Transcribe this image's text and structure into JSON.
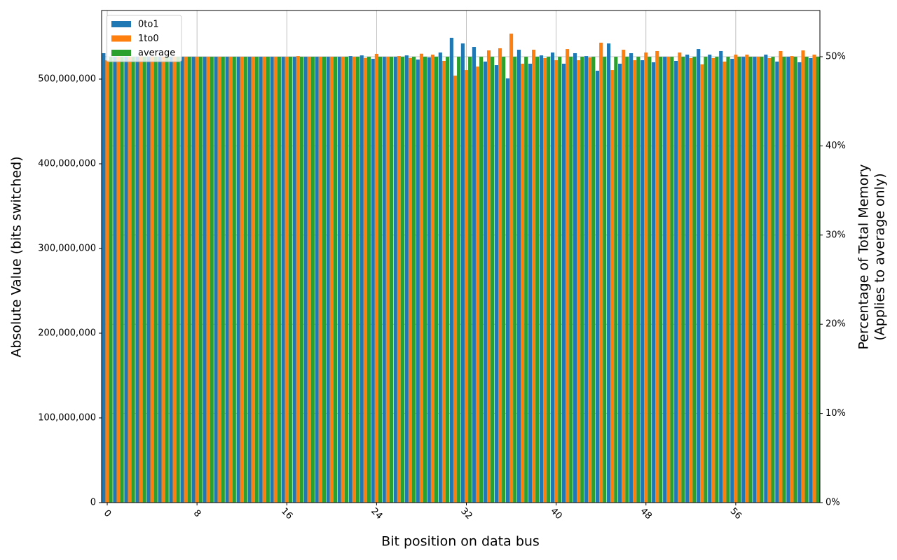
{
  "chart_data": {
    "type": "bar",
    "xlabel": "Bit position on data bus",
    "ylabel": "Absolute Value (bits switched)",
    "y2label": [
      "Percentage of Total Memory",
      "(Applies to average only)"
    ],
    "categories": [
      "0",
      null,
      null,
      null,
      null,
      null,
      null,
      null,
      "8",
      null,
      null,
      null,
      null,
      null,
      null,
      null,
      "16",
      null,
      null,
      null,
      null,
      null,
      null,
      null,
      "24",
      null,
      null,
      null,
      null,
      null,
      null,
      null,
      "32",
      null,
      null,
      null,
      null,
      null,
      null,
      null,
      "40",
      null,
      null,
      null,
      null,
      null,
      null,
      null,
      "48",
      null,
      null,
      null,
      null,
      null,
      null,
      null,
      "56",
      null,
      null,
      null,
      null,
      null,
      null,
      null
    ],
    "series": [
      {
        "name": "0to1",
        "color": "#1f77b4",
        "values": [
          530600000,
          526400000,
          526400000,
          526400000,
          526400000,
          526400000,
          526400000,
          526400000,
          526400000,
          526400000,
          526400000,
          526400000,
          526400000,
          526400000,
          526400000,
          526400000,
          526400000,
          526400000,
          526400000,
          526400000,
          526400000,
          526400000,
          527200000,
          528000000,
          524000000,
          526400000,
          526400000,
          528000000,
          523100000,
          525600000,
          531400000,
          548800000,
          542100000,
          538000000,
          520700000,
          516500000,
          500800000,
          534700000,
          518200000,
          528000000,
          531400000,
          518200000,
          530600000,
          527200000,
          509900000,
          542100000,
          518200000,
          530600000,
          522300000,
          519900000,
          526400000,
          521500000,
          528900000,
          535500000,
          528900000,
          533100000,
          524000000,
          526400000,
          526400000,
          528900000,
          520700000,
          526400000,
          519900000,
          524800000
        ]
      },
      {
        "name": "1to0",
        "color": "#ff7f0e",
        "values": [
          522200000,
          526400000,
          526400000,
          526400000,
          526400000,
          526400000,
          526400000,
          526400000,
          526400000,
          526400000,
          526400000,
          526400000,
          526400000,
          526400000,
          526400000,
          526400000,
          526400000,
          527200000,
          526400000,
          526400000,
          526400000,
          526400000,
          526400000,
          525000000,
          529800000,
          526400000,
          527200000,
          525000000,
          530000000,
          528900000,
          521500000,
          504100000,
          510700000,
          514800000,
          533900000,
          536400000,
          553700000,
          518200000,
          534700000,
          524800000,
          522300000,
          535500000,
          522300000,
          525600000,
          543000000,
          510700000,
          534700000,
          522300000,
          531400000,
          533100000,
          526400000,
          531400000,
          524800000,
          517400000,
          524800000,
          520700000,
          528900000,
          528900000,
          526400000,
          524800000,
          533100000,
          527200000,
          533900000,
          528900000
        ]
      },
      {
        "name": "average",
        "color": "#2ca02c",
        "values": [
          526400000,
          526400000,
          526400000,
          526400000,
          526400000,
          526400000,
          526400000,
          526400000,
          526400000,
          526400000,
          526400000,
          526400000,
          526400000,
          526400000,
          526400000,
          526400000,
          526400000,
          526400000,
          526400000,
          526400000,
          526400000,
          526400000,
          526400000,
          526400000,
          526400000,
          526400000,
          526400000,
          526400000,
          526400000,
          526400000,
          526400000,
          526400000,
          526400000,
          526400000,
          526400000,
          526400000,
          526400000,
          526400000,
          526400000,
          526400000,
          526400000,
          526400000,
          526400000,
          526400000,
          526400000,
          526400000,
          526400000,
          526400000,
          526400000,
          526400000,
          526400000,
          526400000,
          526400000,
          526400000,
          526400000,
          526400000,
          526400000,
          526400000,
          526400000,
          526400000,
          526400000,
          526400000,
          526400000,
          526400000
        ]
      }
    ],
    "ylim": [
      0,
      581000000
    ],
    "yticks": [
      0,
      {
        "value": 100000000,
        "label": "100,000,000"
      },
      {
        "value": 200000000,
        "label": "200,000,000"
      },
      {
        "value": 300000000,
        "label": "300,000,000"
      },
      {
        "value": 400000000,
        "label": "400,000,000"
      },
      {
        "value": 500000000,
        "label": "500,000,000"
      }
    ],
    "y2lim": [
      0,
      55.18
    ],
    "y2ticks": [
      {
        "value": 0,
        "label": "0%"
      },
      {
        "value": 10,
        "label": "10%"
      },
      {
        "value": 20,
        "label": "20%"
      },
      {
        "value": 30,
        "label": "30%"
      },
      {
        "value": 40,
        "label": "40%"
      },
      {
        "value": 50,
        "label": "50%"
      }
    ],
    "grid": true,
    "legend": "upper left"
  }
}
